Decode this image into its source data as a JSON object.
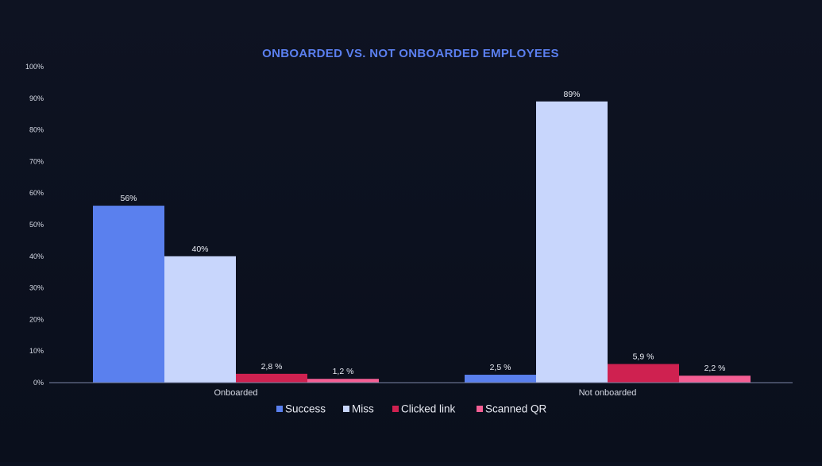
{
  "chart_data": {
    "type": "bar",
    "title": "ONBOARDED VS. NOT ONBOARDED EMPLOYEES",
    "xlabel": "",
    "ylabel": "",
    "categories": [
      "Onboarded",
      "Not onboarded"
    ],
    "ylim": [
      0,
      100
    ],
    "yticks": [
      0,
      10,
      20,
      30,
      40,
      50,
      60,
      70,
      80,
      90,
      100
    ],
    "ytick_labels": [
      "0%",
      "10%",
      "20%",
      "30%",
      "40%",
      "50%",
      "60%",
      "70%",
      "80%",
      "90%",
      "100%"
    ],
    "grid": false,
    "legend_position": "bottom",
    "series": [
      {
        "name": "Success",
        "color": "#5a80ee",
        "values": [
          56,
          2.5
        ],
        "labels": [
          "56%",
          "2,5 %"
        ]
      },
      {
        "name": "Miss",
        "color": "#c8d6fc",
        "values": [
          40,
          89
        ],
        "labels": [
          "40%",
          "89%"
        ]
      },
      {
        "name": "Clicked link",
        "color": "#cf2150",
        "values": [
          2.8,
          5.9
        ],
        "labels": [
          "2,8 %",
          "5,9 %"
        ]
      },
      {
        "name": "Scanned QR",
        "color": "#f45f94",
        "values": [
          1.2,
          2.2
        ],
        "labels": [
          "1,2 %",
          "2,2 %"
        ]
      }
    ]
  },
  "colors": {
    "background": "#0b1120",
    "title": "#5b7ff0",
    "axis_line": "#7c86a8",
    "text": "#d7dbe6"
  }
}
